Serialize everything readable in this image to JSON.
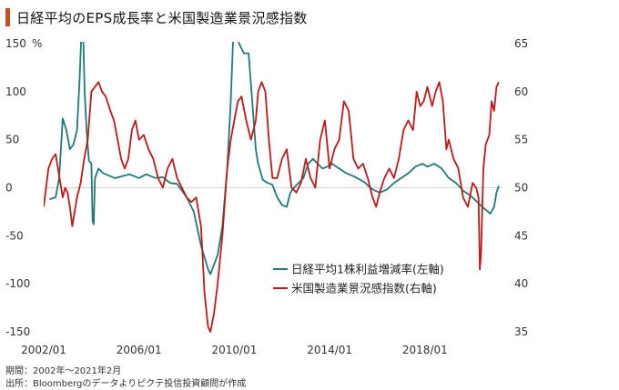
{
  "header": {
    "title": "日経平均のEPS成長率と米国製造業景況感指数"
  },
  "footnotes": {
    "period": "期間：2002年～2021年2月",
    "source": "出所：Bloombergのデータよりピクテ投信投資顧問が作成"
  },
  "chart_data": {
    "type": "line",
    "title": "日経平均のEPS成長率と米国製造業景況感指数",
    "left_axis": {
      "unit_label": "%",
      "range": [
        -150,
        150
      ],
      "ticks": [
        150,
        100,
        50,
        0,
        -50,
        -100,
        -150
      ],
      "tick_labels": [
        "150",
        "100",
        "50",
        "0",
        "-50",
        "-100",
        "-150"
      ]
    },
    "right_axis": {
      "range": [
        35,
        65
      ],
      "ticks": [
        65,
        60,
        55,
        50,
        45,
        40,
        35
      ],
      "tick_labels": [
        "65",
        "60",
        "55",
        "50",
        "45",
        "40",
        "35"
      ]
    },
    "x_axis": {
      "range": [
        2002.0,
        2021.1
      ],
      "ticks": [
        2002.0,
        2006.0,
        2010.0,
        2014.0,
        2018.0
      ],
      "tick_labels": [
        "2002/01",
        "2006/01",
        "2010/01",
        "2014/01",
        "2018/01"
      ]
    },
    "legend": {
      "placement": "center-right"
    },
    "grid": "zero-line only",
    "series": [
      {
        "name": "日経平均1株利益増減率(左軸)",
        "axis": "left",
        "color": "#1f7a78",
        "points": [
          [
            2002.25,
            -12
          ],
          [
            2002.5,
            -10
          ],
          [
            2002.65,
            10
          ],
          [
            2002.8,
            72
          ],
          [
            2002.95,
            60
          ],
          [
            2003.1,
            40
          ],
          [
            2003.25,
            45
          ],
          [
            2003.4,
            60
          ],
          [
            2003.5,
            110
          ],
          [
            2003.58,
            160
          ],
          [
            2003.65,
            165
          ],
          [
            2003.72,
            100
          ],
          [
            2003.8,
            60
          ],
          [
            2003.9,
            28
          ],
          [
            2004.0,
            25
          ],
          [
            2004.05,
            -35
          ],
          [
            2004.1,
            -38
          ],
          [
            2004.15,
            10
          ],
          [
            2004.3,
            20
          ],
          [
            2004.5,
            15
          ],
          [
            2004.8,
            12
          ],
          [
            2005.0,
            10
          ],
          [
            2005.3,
            12
          ],
          [
            2005.6,
            14
          ],
          [
            2006.0,
            10
          ],
          [
            2006.3,
            14
          ],
          [
            2006.7,
            10
          ],
          [
            2007.0,
            11
          ],
          [
            2007.3,
            5
          ],
          [
            2007.6,
            4
          ],
          [
            2008.0,
            -10
          ],
          [
            2008.3,
            -25
          ],
          [
            2008.6,
            -60
          ],
          [
            2008.9,
            -85
          ],
          [
            2009.0,
            -90
          ],
          [
            2009.3,
            -70
          ],
          [
            2009.5,
            -40
          ],
          [
            2009.7,
            20
          ],
          [
            2009.85,
            90
          ],
          [
            2009.95,
            155
          ],
          [
            2010.05,
            165
          ],
          [
            2010.2,
            150
          ],
          [
            2010.4,
            140
          ],
          [
            2010.6,
            140
          ],
          [
            2010.75,
            90
          ],
          [
            2010.9,
            40
          ],
          [
            2011.0,
            25
          ],
          [
            2011.2,
            8
          ],
          [
            2011.4,
            5
          ],
          [
            2011.6,
            3
          ],
          [
            2011.8,
            -10
          ],
          [
            2012.0,
            -18
          ],
          [
            2012.2,
            -20
          ],
          [
            2012.35,
            -5
          ],
          [
            2012.5,
            0
          ],
          [
            2012.7,
            5
          ],
          [
            2012.9,
            10
          ],
          [
            2013.1,
            25
          ],
          [
            2013.3,
            30
          ],
          [
            2013.5,
            25
          ],
          [
            2013.7,
            20
          ],
          [
            2013.9,
            22
          ],
          [
            2014.1,
            25
          ],
          [
            2014.4,
            20
          ],
          [
            2014.7,
            15
          ],
          [
            2015.0,
            12
          ],
          [
            2015.3,
            8
          ],
          [
            2015.5,
            5
          ],
          [
            2015.7,
            0
          ],
          [
            2015.9,
            -3
          ],
          [
            2016.1,
            -5
          ],
          [
            2016.4,
            -2
          ],
          [
            2016.7,
            5
          ],
          [
            2017.0,
            10
          ],
          [
            2017.3,
            15
          ],
          [
            2017.6,
            22
          ],
          [
            2017.9,
            25
          ],
          [
            2018.1,
            22
          ],
          [
            2018.4,
            25
          ],
          [
            2018.7,
            20
          ],
          [
            2019.0,
            10
          ],
          [
            2019.3,
            5
          ],
          [
            2019.6,
            -3
          ],
          [
            2019.9,
            -8
          ],
          [
            2020.2,
            -15
          ],
          [
            2020.5,
            -22
          ],
          [
            2020.75,
            -27
          ],
          [
            2020.9,
            -20
          ],
          [
            2021.0,
            -5
          ],
          [
            2021.1,
            2
          ]
        ]
      },
      {
        "name": "米国製造業景況感指数(右軸)",
        "axis": "right",
        "color": "#c0181b",
        "points": [
          [
            2002.0,
            48
          ],
          [
            2002.1,
            50
          ],
          [
            2002.2,
            52
          ],
          [
            2002.35,
            53
          ],
          [
            2002.5,
            53.5
          ],
          [
            2002.6,
            52
          ],
          [
            2002.7,
            50.5
          ],
          [
            2002.8,
            49
          ],
          [
            2002.9,
            50
          ],
          [
            2003.0,
            49.5
          ],
          [
            2003.1,
            48
          ],
          [
            2003.2,
            46
          ],
          [
            2003.3,
            47.5
          ],
          [
            2003.4,
            49
          ],
          [
            2003.55,
            50.5
          ],
          [
            2003.7,
            53
          ],
          [
            2003.85,
            55
          ],
          [
            2004.0,
            60
          ],
          [
            2004.15,
            60.5
          ],
          [
            2004.3,
            61
          ],
          [
            2004.45,
            60
          ],
          [
            2004.6,
            59.5
          ],
          [
            2004.8,
            58
          ],
          [
            2004.95,
            57
          ],
          [
            2005.1,
            55
          ],
          [
            2005.25,
            53
          ],
          [
            2005.4,
            52
          ],
          [
            2005.55,
            53
          ],
          [
            2005.7,
            56
          ],
          [
            2005.85,
            57
          ],
          [
            2006.0,
            55
          ],
          [
            2006.2,
            55.5
          ],
          [
            2006.4,
            54
          ],
          [
            2006.6,
            53
          ],
          [
            2006.8,
            51
          ],
          [
            2007.0,
            50
          ],
          [
            2007.2,
            52
          ],
          [
            2007.4,
            53
          ],
          [
            2007.6,
            51
          ],
          [
            2007.8,
            50
          ],
          [
            2008.0,
            49
          ],
          [
            2008.2,
            48.5
          ],
          [
            2008.4,
            49
          ],
          [
            2008.6,
            46
          ],
          [
            2008.75,
            39
          ],
          [
            2008.9,
            35.5
          ],
          [
            2009.0,
            35
          ],
          [
            2009.15,
            37
          ],
          [
            2009.3,
            40
          ],
          [
            2009.5,
            45
          ],
          [
            2009.7,
            52
          ],
          [
            2009.85,
            55
          ],
          [
            2010.0,
            57
          ],
          [
            2010.15,
            59
          ],
          [
            2010.3,
            59.5
          ],
          [
            2010.5,
            57
          ],
          [
            2010.7,
            55
          ],
          [
            2010.9,
            57
          ],
          [
            2011.0,
            60
          ],
          [
            2011.15,
            61
          ],
          [
            2011.3,
            60
          ],
          [
            2011.45,
            55
          ],
          [
            2011.6,
            51
          ],
          [
            2011.8,
            51
          ],
          [
            2012.0,
            53
          ],
          [
            2012.2,
            54
          ],
          [
            2012.4,
            50
          ],
          [
            2012.6,
            49.5
          ],
          [
            2012.8,
            50.5
          ],
          [
            2013.0,
            53
          ],
          [
            2013.2,
            51
          ],
          [
            2013.4,
            50
          ],
          [
            2013.6,
            55
          ],
          [
            2013.8,
            57
          ],
          [
            2014.0,
            52
          ],
          [
            2014.2,
            54
          ],
          [
            2014.4,
            55
          ],
          [
            2014.6,
            59
          ],
          [
            2014.8,
            58
          ],
          [
            2015.0,
            53
          ],
          [
            2015.2,
            52
          ],
          [
            2015.4,
            52.5
          ],
          [
            2015.6,
            51
          ],
          [
            2015.8,
            49
          ],
          [
            2015.95,
            48
          ],
          [
            2016.1,
            49.5
          ],
          [
            2016.3,
            51
          ],
          [
            2016.5,
            52
          ],
          [
            2016.7,
            51
          ],
          [
            2016.9,
            53
          ],
          [
            2017.1,
            56
          ],
          [
            2017.3,
            57
          ],
          [
            2017.5,
            56
          ],
          [
            2017.65,
            60
          ],
          [
            2017.8,
            58.5
          ],
          [
            2017.95,
            59
          ],
          [
            2018.1,
            60.5
          ],
          [
            2018.3,
            58.5
          ],
          [
            2018.45,
            60
          ],
          [
            2018.6,
            61
          ],
          [
            2018.75,
            59
          ],
          [
            2018.9,
            54
          ],
          [
            2019.0,
            55
          ],
          [
            2019.2,
            53
          ],
          [
            2019.4,
            52
          ],
          [
            2019.6,
            49
          ],
          [
            2019.8,
            48
          ],
          [
            2020.0,
            50.5
          ],
          [
            2020.15,
            50
          ],
          [
            2020.25,
            49
          ],
          [
            2020.3,
            41.5
          ],
          [
            2020.35,
            43
          ],
          [
            2020.45,
            52
          ],
          [
            2020.55,
            54.5
          ],
          [
            2020.7,
            55.5
          ],
          [
            2020.8,
            59
          ],
          [
            2020.9,
            58
          ],
          [
            2021.0,
            60.5
          ],
          [
            2021.1,
            61
          ]
        ]
      }
    ]
  }
}
